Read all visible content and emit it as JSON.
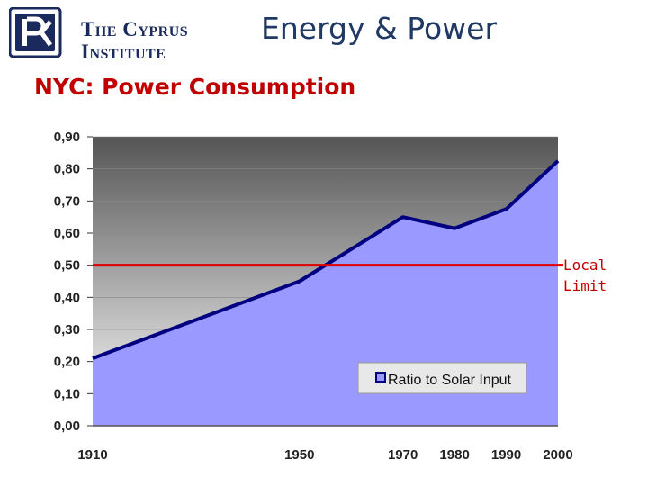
{
  "header": {
    "logo_line1": "The Cyprus",
    "logo_line2": "Institute",
    "title": "Energy & Power"
  },
  "subtitle": "NYC: Power Consumption",
  "chart_data": {
    "type": "area",
    "x": [
      "1910",
      "1950",
      "1970",
      "1980",
      "1990",
      "2000"
    ],
    "y_tick_labels": [
      "0,00",
      "0,10",
      "0,20",
      "0,30",
      "0,40",
      "0,50",
      "0,60",
      "0,70",
      "0,80",
      "0,90"
    ],
    "ylim": [
      0,
      0.9
    ],
    "series": [
      {
        "name": "Ratio to Solar Input",
        "values": [
          0.21,
          0.45,
          0.65,
          0.615,
          0.675,
          0.825
        ]
      }
    ],
    "reference_line": {
      "value": 0.5,
      "label": "Local\nLimit",
      "color": "#e00000"
    },
    "legend": "inside-bottom-right",
    "colors": {
      "fill": "#9999ff",
      "line": "#000080",
      "plot_bg_top": "#555555",
      "plot_bg_bottom": "#ffffff"
    }
  }
}
